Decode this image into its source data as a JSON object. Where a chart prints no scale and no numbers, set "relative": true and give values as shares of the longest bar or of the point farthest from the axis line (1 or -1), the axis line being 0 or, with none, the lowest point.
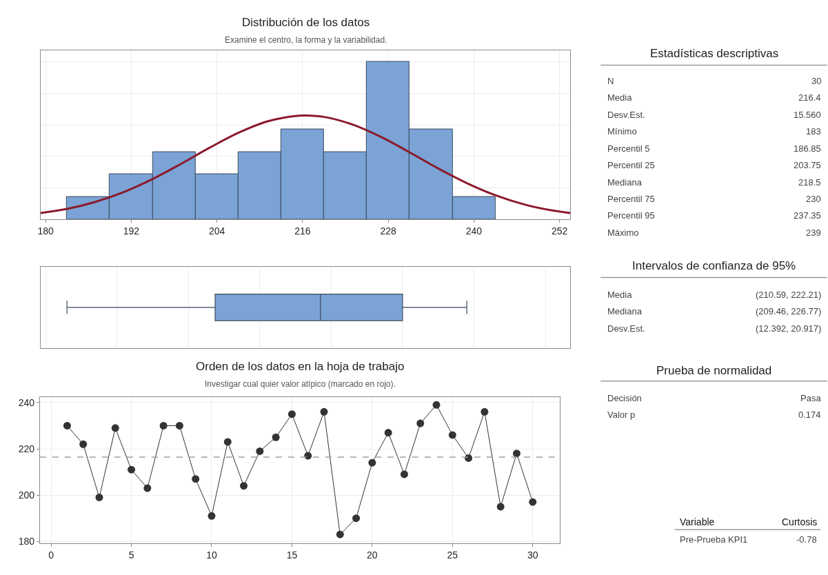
{
  "chart_data": [
    {
      "type": "histogram",
      "title": "Distribución de los datos",
      "subtitle": "Examine el centro, la forma y la variabilidad.",
      "relative": true,
      "bins": [
        183,
        189,
        195,
        201,
        207,
        213,
        219,
        225,
        231,
        237,
        243
      ],
      "series": [
        {
          "type": "histogram",
          "color": "#7ba3d6",
          "values": [
            0.143,
            0.286,
            0.429,
            0.286,
            0.429,
            0.571,
            0.429,
            1,
            0.571,
            0.143
          ]
        },
        {
          "type": "line",
          "color": "#8b1a2b",
          "x": [
            179.3,
            183,
            187,
            191,
            195,
            199,
            203,
            207,
            211,
            215,
            216.4,
            219,
            223,
            227,
            231,
            235,
            239,
            243,
            247,
            251,
            253.5
          ],
          "values": [
            0.04,
            0.066,
            0.111,
            0.174,
            0.256,
            0.353,
            0.455,
            0.549,
            0.621,
            0.656,
            0.659,
            0.65,
            0.602,
            0.523,
            0.425,
            0.323,
            0.23,
            0.153,
            0.095,
            0.056,
            0.04
          ]
        }
      ],
      "xlim": [
        179.3,
        253.5
      ],
      "xticks": [
        180,
        192,
        204,
        216,
        228,
        240,
        252
      ],
      "grid": true,
      "tick_labels": "x"
    },
    {
      "type": "box",
      "orientation": "horizontal",
      "categories": [
        null
      ],
      "color": "#7ba3d6",
      "boxes": [
        {
          "low": 183,
          "q1": 203.75,
          "median": 218.5,
          "q3": 230,
          "high": 239
        }
      ],
      "xlim": [
        179.3,
        253.5
      ],
      "tick_labels": false,
      "grid": "x"
    },
    {
      "type": "line",
      "title": "Orden de los datos en la hoja de trabajo",
      "subtitle": "Investigar cual quier valor atípico (marcado en rojo).",
      "color": "#333333",
      "marker": "circle",
      "x": [
        1,
        2,
        3,
        4,
        5,
        6,
        7,
        8,
        9,
        10,
        11,
        12,
        13,
        14,
        15,
        16,
        17,
        18,
        19,
        20,
        21,
        22,
        23,
        24,
        25,
        26,
        27,
        28,
        29,
        30
      ],
      "values": [
        230,
        222,
        199,
        229,
        211,
        203,
        230,
        230,
        207,
        191,
        223,
        204,
        219,
        225,
        235,
        217,
        236,
        183,
        190,
        214,
        227,
        209,
        231,
        239,
        226,
        216,
        236,
        195,
        218,
        197
      ],
      "ref_lines": [
        {
          "axis": "y",
          "value": 216.4,
          "line_style": "dashed",
          "color": "#a0a0a0"
        }
      ],
      "xlim": [
        -0.7,
        31.7
      ],
      "xticks": [
        0,
        5,
        10,
        15,
        20,
        25,
        30
      ],
      "ylim": [
        179.1,
        242.5
      ],
      "yticks": [
        180,
        200,
        220,
        240
      ],
      "grid": true
    },
    {
      "type": "other",
      "title": "Estadísticas descriptivas",
      "annotations": [
        "N",
        "30",
        "Media",
        "216.4",
        "Desv.Est.",
        "15.560",
        "Mínimo",
        "183",
        "Percentil 5",
        "186.85",
        "Percentil 25",
        "203.75",
        "Mediana",
        "218.5",
        "Percentil 75",
        "230",
        "Percentil 95",
        "237.35",
        "Máximo",
        "239"
      ]
    },
    {
      "type": "other",
      "title": "Intervalos de confianza de 95%",
      "annotations": [
        "Media",
        "(210.59, 222.21)",
        "Mediana",
        "(209.46, 226.77)",
        "Desv.Est.",
        "(12.392, 20.917)"
      ]
    },
    {
      "type": "other",
      "title": "Prueba de normalidad",
      "annotations": [
        "Decisión",
        "Pasa",
        "Valor p",
        "0.174"
      ]
    },
    {
      "type": "other",
      "annotations": [
        "Variable",
        "Curtosis",
        "Pre-Prueba KPI1",
        "-0.78"
      ]
    }
  ]
}
